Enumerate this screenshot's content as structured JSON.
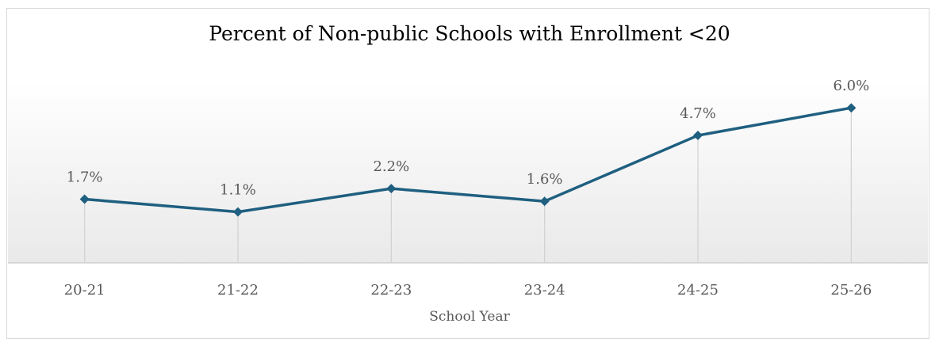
{
  "chart_data": {
    "type": "line",
    "title": "Percent of Non-public Schools with Enrollment <20",
    "xlabel": "School Year",
    "ylabel": "",
    "categories": [
      "20-21",
      "21-22",
      "22-23",
      "23-24",
      "24-25",
      "25-26"
    ],
    "series": [
      {
        "values": [
          1.7,
          1.1,
          2.2,
          1.6,
          4.7,
          6.0
        ],
        "data_labels": [
          "1.7%",
          "1.1%",
          "2.2%",
          "1.6%",
          "4.7%",
          "6.0%"
        ],
        "color": "#1f5f80",
        "marker": "diamond"
      }
    ],
    "ylim": [
      -1.3,
      7.2
    ],
    "grid": false,
    "drop_lines": true,
    "legend": "none"
  }
}
